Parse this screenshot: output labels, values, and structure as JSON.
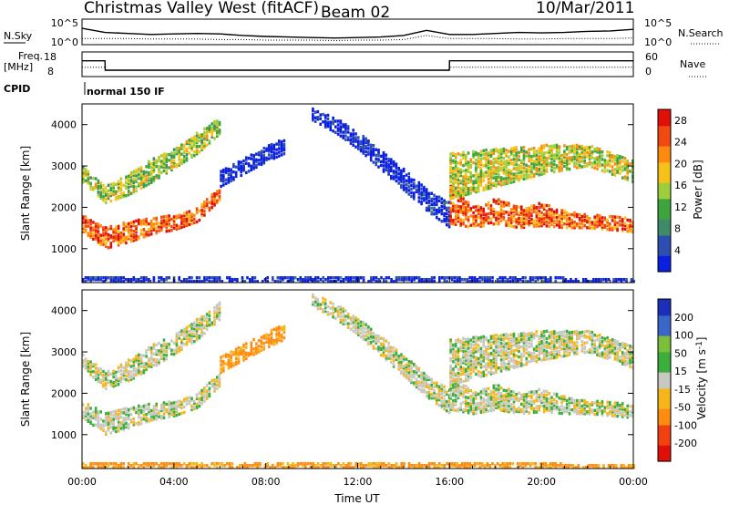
{
  "header": {
    "title": "Christmas Valley West (fitACF)",
    "beam": "Beam 02",
    "date": "10/Mar/2011"
  },
  "colors": {
    "power_scale": [
      "#0b1fe0",
      "#2f4fb0",
      "#3f8a6a",
      "#3ea43e",
      "#9ccf3a",
      "#f6c21a",
      "#ff8a10",
      "#f04a10",
      "#e01008"
    ],
    "velocity_scale": [
      "#1b2fb8",
      "#3a66c8",
      "#7bbf3a",
      "#3cae3c",
      "#c9c9c2",
      "#f6b61a",
      "#ff8c10",
      "#f24010",
      "#e01008"
    ],
    "ground_scatter": "#c8c8c0"
  },
  "chart_data": [
    {
      "type": "line",
      "panel": "noise",
      "left_label": "N.Sky",
      "right_label": "N.Search",
      "yticks_left": [
        "10^5",
        "10^0"
      ],
      "yticks_right": [
        "10^5",
        "10^0"
      ],
      "x": [
        0,
        1,
        2,
        3,
        4,
        5,
        6,
        7,
        8,
        9,
        10,
        11,
        12,
        13,
        14,
        15,
        16,
        17,
        18,
        19,
        20,
        21,
        22,
        23,
        24
      ],
      "series": [
        {
          "name": "N.Sky",
          "values": [
            3.2,
            2.4,
            2.2,
            2.0,
            2.1,
            2.2,
            2.1,
            1.8,
            1.6,
            1.5,
            1.4,
            1.3,
            1.4,
            1.5,
            1.8,
            2.8,
            2.0,
            2.0,
            2.2,
            2.4,
            2.3,
            2.4,
            2.6,
            2.7,
            3.0
          ]
        },
        {
          "name": "N.Search",
          "values": [
            1.2,
            1.2,
            1.2,
            1.1,
            1.1,
            1.1,
            1.0,
            1.0,
            0.9,
            0.9,
            0.9,
            0.8,
            0.9,
            0.9,
            1.0,
            1.8,
            1.2,
            1.2,
            1.2,
            1.1,
            1.1,
            1.2,
            1.2,
            1.2,
            1.3
          ]
        }
      ]
    },
    {
      "type": "line",
      "panel": "frequency",
      "left_label_1": "Freq.",
      "left_label_2": "[MHz]",
      "right_label": "Nave",
      "yticks_left": [
        "18",
        "8"
      ],
      "yticks_right": [
        "60",
        "0"
      ],
      "x": [
        0,
        1.0,
        1.01,
        15.99,
        16.0,
        24
      ],
      "series": [
        {
          "name": "Freq.",
          "values": [
            14.4,
            14.4,
            10.6,
            10.6,
            14.4,
            14.4
          ]
        },
        {
          "name": "Nave",
          "values": [
            23,
            23,
            15,
            15,
            23,
            23
          ]
        }
      ]
    },
    {
      "type": "table",
      "panel": "cpid",
      "label": "CPID",
      "value": "normal 150 IF"
    },
    {
      "type": "heatmap",
      "panel": "power",
      "ylabel": "Slant Range [km]",
      "yticks": [
        1000,
        2000,
        3000,
        4000
      ],
      "ylim": [
        180,
        4500
      ],
      "xlim": [
        0,
        24
      ],
      "colorbar": {
        "label": "Power [dB]",
        "ticks": [
          4,
          8,
          12,
          16,
          20,
          24,
          28
        ],
        "range": [
          0,
          30
        ]
      },
      "bands": [
        {
          "t": [
            0,
            1,
            2,
            3,
            4,
            5,
            6
          ],
          "r_low": [
            1400,
            1000,
            1150,
            1350,
            1450,
            1650,
            2200
          ],
          "r_high": [
            1800,
            1500,
            1650,
            1750,
            1800,
            2000,
            2500
          ],
          "power": 30
        },
        {
          "t": [
            0,
            1,
            2,
            3,
            4,
            5,
            6
          ],
          "r_low": [
            2600,
            2100,
            2300,
            2600,
            2950,
            3300,
            3800
          ],
          "r_high": [
            3000,
            2500,
            2800,
            3150,
            3400,
            3800,
            4200
          ],
          "power": 21
        },
        {
          "t": [
            6,
            7,
            8,
            8.8
          ],
          "r_low": [
            2500,
            2800,
            3100,
            3300
          ],
          "r_high": [
            2900,
            3200,
            3500,
            3650
          ],
          "power": 6
        },
        {
          "t": [
            10,
            11,
            12,
            13,
            14,
            15,
            16
          ],
          "r_low": [
            4100,
            3800,
            3400,
            2900,
            2400,
            1900,
            1500
          ],
          "r_high": [
            4400,
            4150,
            3800,
            3350,
            2900,
            2400,
            2100
          ],
          "power": 7
        },
        {
          "t": [
            16,
            17,
            18,
            19,
            20,
            21,
            22,
            23,
            24
          ],
          "r_low": [
            1600,
            1500,
            1600,
            1500,
            1550,
            1500,
            1500,
            1450,
            1400
          ],
          "r_high": [
            2600,
            2000,
            2200,
            2000,
            2100,
            1900,
            1800,
            1800,
            1700
          ],
          "power": 30
        },
        {
          "t": [
            16,
            18,
            20,
            22,
            24
          ],
          "r_low": [
            2200,
            2500,
            2800,
            3000,
            2600
          ],
          "r_high": [
            3300,
            3400,
            3500,
            3500,
            3100
          ],
          "power": 22
        },
        {
          "t": [
            0,
            6,
            12,
            18,
            24
          ],
          "r_low": [
            200,
            200,
            200,
            200,
            200
          ],
          "r_high": [
            300,
            330,
            330,
            300,
            280
          ],
          "power": 7
        }
      ]
    },
    {
      "type": "heatmap",
      "panel": "velocity",
      "ylabel": "Slant Range [km]",
      "yticks": [
        1000,
        2000,
        3000,
        4000
      ],
      "ylim": [
        180,
        4500
      ],
      "xlim": [
        0,
        24
      ],
      "xticks": [
        "00:00",
        "04:00",
        "08:00",
        "12:00",
        "16:00",
        "20:00",
        "00:00"
      ],
      "xlabel": "Time UT",
      "colorbar": {
        "label": "Velocity [m s-1]",
        "ticks": [
          200,
          100,
          50,
          15,
          -15,
          -50,
          -100,
          -200
        ],
        "range": [
          -250,
          250
        ]
      },
      "bands": [
        {
          "t": [
            0,
            1,
            2,
            3,
            4,
            5,
            6
          ],
          "r_low": [
            1400,
            1000,
            1150,
            1350,
            1450,
            1650,
            2200
          ],
          "r_high": [
            1800,
            1500,
            1650,
            1750,
            1800,
            2000,
            2500
          ],
          "velocity": 0
        },
        {
          "t": [
            0,
            1,
            2,
            3,
            4,
            5,
            6
          ],
          "r_low": [
            2600,
            2100,
            2300,
            2600,
            2950,
            3300,
            3800
          ],
          "r_high": [
            3000,
            2500,
            2800,
            3150,
            3400,
            3800,
            4200
          ],
          "velocity": 0
        },
        {
          "t": [
            6,
            7,
            8,
            8.8
          ],
          "r_low": [
            2500,
            2800,
            3100,
            3300
          ],
          "r_high": [
            2900,
            3200,
            3500,
            3650
          ],
          "velocity": -60
        },
        {
          "t": [
            10,
            11,
            12,
            13,
            14,
            15,
            16
          ],
          "r_low": [
            4100,
            3800,
            3400,
            2900,
            2400,
            1900,
            1500
          ],
          "r_high": [
            4400,
            4150,
            3800,
            3350,
            2900,
            2400,
            2100
          ],
          "velocity": 0
        },
        {
          "t": [
            16,
            17,
            18,
            19,
            20,
            21,
            22,
            23,
            24
          ],
          "r_low": [
            1600,
            1500,
            1600,
            1500,
            1550,
            1500,
            1500,
            1450,
            1400
          ],
          "r_high": [
            2600,
            2000,
            2200,
            2000,
            2100,
            1900,
            1800,
            1800,
            1700
          ],
          "velocity": 0
        },
        {
          "t": [
            16,
            18,
            20,
            22,
            24
          ],
          "r_low": [
            2200,
            2500,
            2800,
            3000,
            2600
          ],
          "r_high": [
            3300,
            3400,
            3500,
            3500,
            3100
          ],
          "velocity": 0
        },
        {
          "t": [
            0,
            6,
            12,
            18,
            24
          ],
          "r_low": [
            200,
            200,
            200,
            200,
            200
          ],
          "r_high": [
            300,
            330,
            330,
            300,
            280
          ],
          "velocity": -60
        }
      ]
    }
  ]
}
